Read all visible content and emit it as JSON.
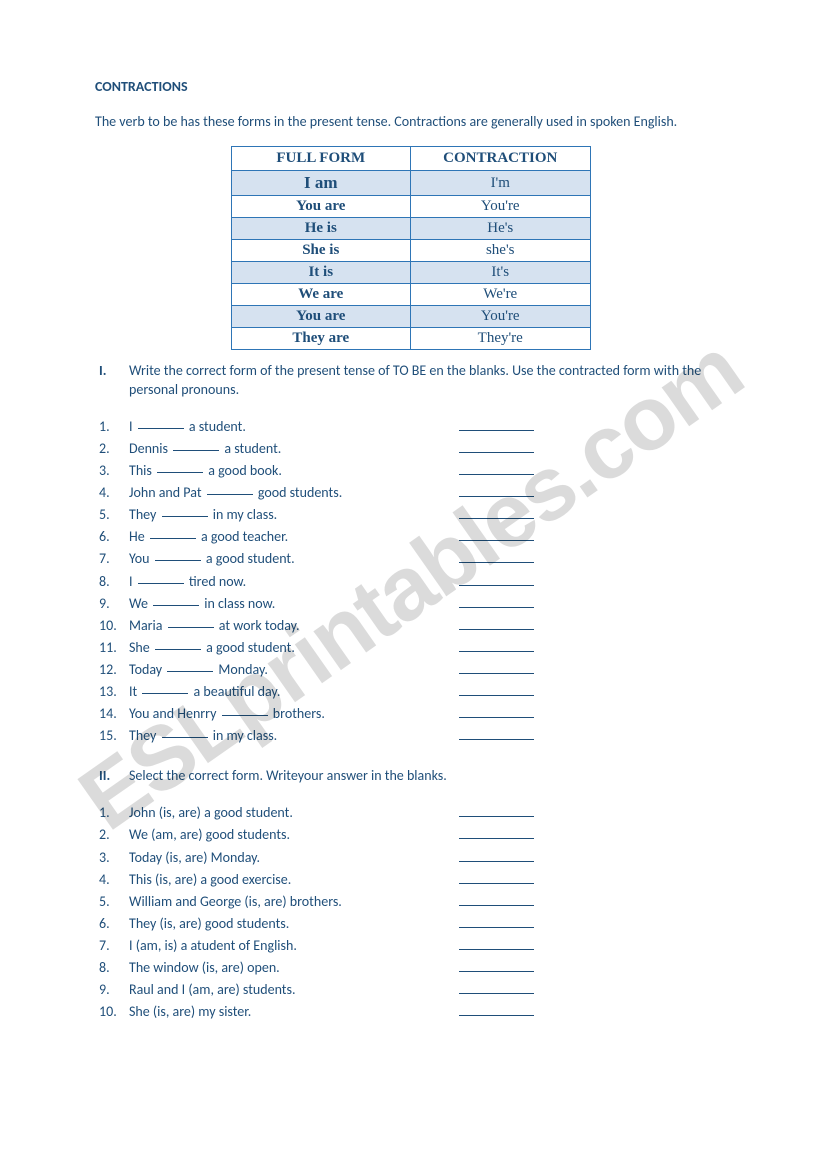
{
  "colors": {
    "text": "#1f4e79",
    "table_border": "#2e75b6",
    "row_shaded": "#d6e2f0",
    "row_plain": "#ffffff",
    "blank_line": "#1f4e79",
    "watermark": "rgba(0,0,0,0.14)"
  },
  "title": "CONTRACTIONS",
  "intro": "The verb to be has these forms in the present tense. Contractions are generally used in spoken English.",
  "table": {
    "headers": [
      "FULL FORM",
      "CONTRACTION"
    ],
    "header_fontsize": 15,
    "cell_fontsize": 15,
    "first_row_bold": true,
    "rows": [
      {
        "full": "I am",
        "contraction": "I'm",
        "shaded": true,
        "first": true
      },
      {
        "full": "You are",
        "contraction": "You're",
        "shaded": false,
        "first": false
      },
      {
        "full": "He is",
        "contraction": "He's",
        "shaded": true,
        "first": false
      },
      {
        "full": "She is",
        "contraction": "she's",
        "shaded": false,
        "first": false
      },
      {
        "full": "It is",
        "contraction": "It's",
        "shaded": true,
        "first": false
      },
      {
        "full": "We are",
        "contraction": "We're",
        "shaded": false,
        "first": false
      },
      {
        "full": "You are",
        "contraction": "You're",
        "shaded": true,
        "first": false
      },
      {
        "full": "They are",
        "contraction": "They're",
        "shaded": false,
        "first": false
      }
    ]
  },
  "sectionI": {
    "num": "I.",
    "text": "Write the correct form of the present tense of TO BE en the blanks. Use the contracted form with the personal pronouns.",
    "items": [
      {
        "n": "1.",
        "pre": "I ",
        "post": " a student."
      },
      {
        "n": "2.",
        "pre": "Dennis ",
        "post": " a student."
      },
      {
        "n": "3.",
        "pre": "This ",
        "post": " a good book."
      },
      {
        "n": "4.",
        "pre": "John and Pat ",
        "post": " good students."
      },
      {
        "n": "5.",
        "pre": "They ",
        "post": " in my class."
      },
      {
        "n": "6.",
        "pre": "He ",
        "post": " a good teacher."
      },
      {
        "n": "7.",
        "pre": "You ",
        "post": " a good student."
      },
      {
        "n": "8.",
        "pre": "I ",
        "post": " tired now."
      },
      {
        "n": "9.",
        "pre": "We ",
        "post": " in class now."
      },
      {
        "n": "10.",
        "pre": "Maria ",
        "post": " at work today."
      },
      {
        "n": "11.",
        "pre": "She ",
        "post": " a good student."
      },
      {
        "n": "12.",
        "pre": "Today ",
        "post": " Monday."
      },
      {
        "n": "13.",
        "pre": "It ",
        "post": " a beautiful day."
      },
      {
        "n": "14.",
        "pre": "You and Henrry ",
        "post": " brothers."
      },
      {
        "n": "15.",
        "pre": "They ",
        "post": " in my class."
      }
    ]
  },
  "sectionII": {
    "num": "II.",
    "text": "Select the correct form. Writeyour answer in the blanks.",
    "items": [
      {
        "n": "1.",
        "sentence": "John (is, are) a good student."
      },
      {
        "n": "2.",
        "sentence": "We (am, are) good students."
      },
      {
        "n": "3.",
        "sentence": "Today (is, are) Monday."
      },
      {
        "n": "4.",
        "sentence": "This (is, are) a good exercise."
      },
      {
        "n": "5.",
        "sentence": "William and George (is, are) brothers."
      },
      {
        "n": "6.",
        "sentence": "They (is, are) good students."
      },
      {
        "n": "7.",
        "sentence": "I (am, is) a atudent of English."
      },
      {
        "n": "8.",
        "sentence": "The window (is, are) open."
      },
      {
        "n": "9.",
        "sentence": "Raul and I (am, are) students."
      },
      {
        "n": "10.",
        "sentence": "She (is, are) my sister."
      }
    ]
  },
  "watermark": "ESLprintables.com"
}
